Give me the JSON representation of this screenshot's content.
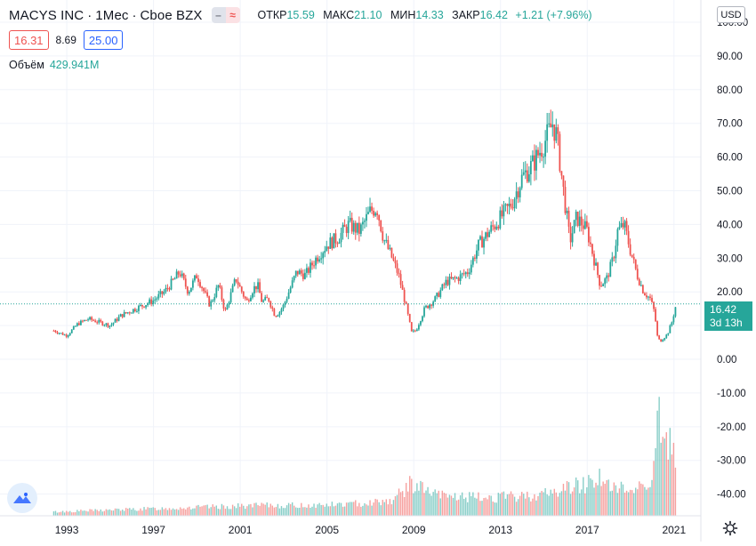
{
  "header": {
    "symbol": "MACYS INC",
    "interval": "1Мес",
    "exchange": "Cboe BZX",
    "ohlc": [
      {
        "label": "ОТКР",
        "value": "15.59"
      },
      {
        "label": "МАКС",
        "value": "21.10"
      },
      {
        "label": "МИН",
        "value": "14.33"
      },
      {
        "label": "ЗАКР",
        "value": "16.42"
      }
    ],
    "change": "+1.21 (+7.96%)",
    "sell_price": "16.31",
    "spread": "8.69",
    "buy_price": "25.00",
    "volume_label": "Объём",
    "volume_value": "429.941M",
    "currency": "USD",
    "last_price": "16.42",
    "countdown": "3d 13h"
  },
  "colors": {
    "up": "#26a69a",
    "down": "#ef5350",
    "grid": "#f0f3fa",
    "text": "#131722"
  },
  "chart_data": {
    "type": "candlestick",
    "title": "MACYS INC · 1Мес · Cboe BZX",
    "price_axis": {
      "ticks": [
        "100.00",
        "90.00",
        "80.00",
        "70.00",
        "60.00",
        "50.00",
        "40.00",
        "30.00",
        "20.00",
        "10.00",
        "0.00",
        "-10.00",
        "-20.00",
        "-30.00",
        "-40.00"
      ],
      "ylim": [
        -43,
        100
      ]
    },
    "time_axis": {
      "ticks": [
        "1993",
        "1997",
        "2001",
        "2005",
        "2009",
        "2013",
        "2017",
        "2021"
      ],
      "range": [
        1992.3,
        2021.5
      ]
    },
    "last_value": 16.42,
    "price_series": {
      "x": [
        1992.4,
        1993.0,
        1993.5,
        1994.0,
        1994.5,
        1995.0,
        1995.5,
        1996.0,
        1996.5,
        1997.0,
        1997.5,
        1998.0,
        1998.2,
        1998.6,
        1999.0,
        1999.3,
        1999.6,
        2000.0,
        2000.3,
        2000.6,
        2000.8,
        2001.0,
        2001.3,
        2001.6,
        2001.8,
        2002.0,
        2002.3,
        2002.6,
        2002.8,
        2003.0,
        2003.3,
        2003.6,
        2004.0,
        2004.5,
        2005.0,
        2005.5,
        2006.0,
        2006.5,
        2007.0,
        2007.3,
        2007.6,
        2008.0,
        2008.3,
        2008.6,
        2008.9,
        2009.1,
        2009.5,
        2010.0,
        2010.5,
        2011.0,
        2011.5,
        2012.0,
        2012.5,
        2013.0,
        2013.5,
        2014.0,
        2014.5,
        2015.0,
        2015.4,
        2015.6,
        2015.9,
        2016.2,
        2016.5,
        2016.8,
        2017.0,
        2017.3,
        2017.6,
        2017.9,
        2018.2,
        2018.4,
        2018.7,
        2019.0,
        2019.3,
        2019.6,
        2019.9,
        2020.1,
        2020.25,
        2020.4,
        2020.7,
        2020.9,
        2021.1
      ],
      "close": [
        8.5,
        7.0,
        10.5,
        12.0,
        11.0,
        10.0,
        13.0,
        14.5,
        16.0,
        17.5,
        20.0,
        24.0,
        26.0,
        20.0,
        25.0,
        20.5,
        16.0,
        22.0,
        14.0,
        20.0,
        24.0,
        21.0,
        17.0,
        21.0,
        22.0,
        17.0,
        18.0,
        13.0,
        14.0,
        16.0,
        21.0,
        26.0,
        25.0,
        30.0,
        34.0,
        36.0,
        40.0,
        38.0,
        44.0,
        45.0,
        36.0,
        30.0,
        25.0,
        17.0,
        8.0,
        8.5,
        15.0,
        18.0,
        23.0,
        24.0,
        26.0,
        34.0,
        38.0,
        42.0,
        46.0,
        54.0,
        58.0,
        64.0,
        70.0,
        66.0,
        50.0,
        35.0,
        42.0,
        40.0,
        38.0,
        30.0,
        22.0,
        24.0,
        30.0,
        38.0,
        40.0,
        32.0,
        25.0,
        20.0,
        18.0,
        14.0,
        6.0,
        5.5,
        7.5,
        11.0,
        16.4
      ]
    },
    "volume_series": {
      "x": [
        1992.4,
        1994.0,
        1996.0,
        1998.0,
        2000.0,
        2002.0,
        2004.0,
        2006.0,
        2008.0,
        2008.9,
        2009.3,
        2010.0,
        2012.0,
        2014.0,
        2015.5,
        2016.0,
        2017.0,
        2017.5,
        2018.0,
        2019.0,
        2019.5,
        2020.0,
        2020.2,
        2020.3,
        2020.45,
        2020.6,
        2020.8,
        2021.1
      ],
      "relative": [
        0.03,
        0.04,
        0.05,
        0.06,
        0.07,
        0.08,
        0.08,
        0.09,
        0.12,
        0.25,
        0.22,
        0.16,
        0.14,
        0.15,
        0.18,
        0.22,
        0.25,
        0.32,
        0.22,
        0.2,
        0.24,
        0.3,
        0.55,
        1.0,
        0.6,
        0.5,
        0.55,
        0.4
      ]
    }
  }
}
